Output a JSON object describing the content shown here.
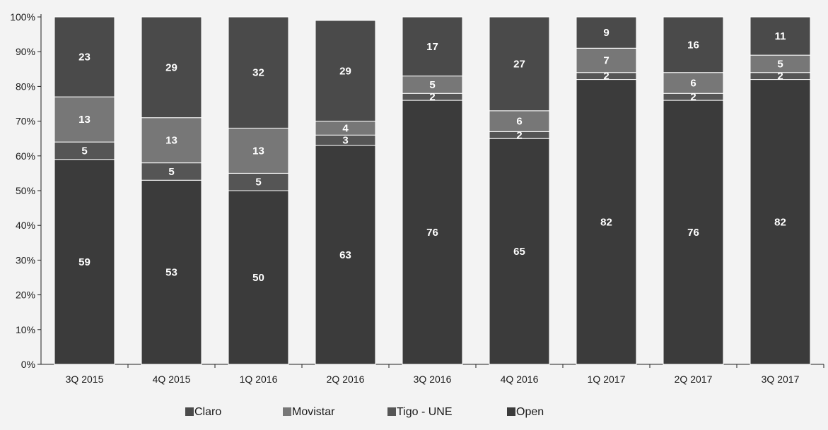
{
  "chart_data": {
    "type": "bar",
    "stacked": true,
    "categories": [
      "3Q 2015",
      "4Q 2015",
      "1Q 2016",
      "2Q 2016",
      "3Q 2016",
      "4Q 2016",
      "1Q 2017",
      "2Q 2017",
      "3Q 2017"
    ],
    "series": [
      {
        "name": "Open",
        "values": [
          59,
          53,
          50,
          63,
          76,
          65,
          82,
          76,
          82
        ],
        "color": "#3b3b3b"
      },
      {
        "name": "Tigo - UNE",
        "values": [
          5,
          5,
          5,
          3,
          2,
          2,
          2,
          2,
          2
        ],
        "color": "#555555"
      },
      {
        "name": "Movistar",
        "values": [
          13,
          13,
          13,
          4,
          5,
          6,
          7,
          6,
          5
        ],
        "color": "#777777"
      },
      {
        "name": "Claro",
        "values": [
          23,
          29,
          32,
          29,
          17,
          27,
          9,
          16,
          11
        ],
        "color": "#4a4a4a"
      }
    ],
    "legend_order": [
      "Claro",
      "Movistar",
      "Tigo - UNE",
      "Open"
    ],
    "legend_colors": {
      "Claro": "#4a4a4a",
      "Movistar": "#777777",
      "Tigo - UNE": "#555555",
      "Open": "#3b3b3b"
    },
    "y_ticks": [
      "0%",
      "10%",
      "20%",
      "30%",
      "40%",
      "50%",
      "60%",
      "70%",
      "80%",
      "90%",
      "100%"
    ],
    "ylim": [
      0,
      100
    ],
    "grid": false,
    "legend_position": "bottom",
    "title": "",
    "xlabel": "",
    "ylabel": ""
  }
}
